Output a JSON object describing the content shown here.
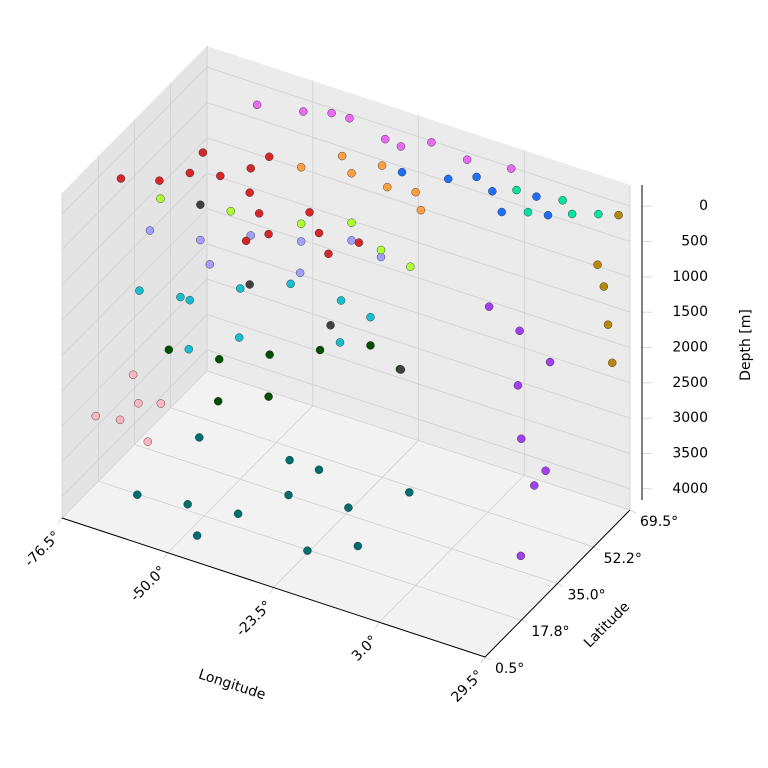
{
  "chart_data": {
    "type": "scatter3d",
    "xlabel": "Longitude",
    "ylabel": "Latitude",
    "zlabel": "Depth [m]",
    "xlim": [
      -76.5,
      29.5
    ],
    "ylim": [
      0.5,
      69.5
    ],
    "zlim": [
      4300,
      -300
    ],
    "xticks": [
      {
        "value": -76.5,
        "label": "-76.5°"
      },
      {
        "value": -50.0,
        "label": "-50.0°"
      },
      {
        "value": -23.5,
        "label": "-23.5°"
      },
      {
        "value": 3.0,
        "label": "3.0°"
      },
      {
        "value": 29.5,
        "label": "29.5°"
      }
    ],
    "yticks": [
      {
        "value": 0.5,
        "label": "0.5°"
      },
      {
        "value": 17.8,
        "label": "17.8°"
      },
      {
        "value": 35.0,
        "label": "35.0°"
      },
      {
        "value": 52.2,
        "label": "52.2°"
      },
      {
        "value": 69.5,
        "label": "69.5°"
      }
    ],
    "zticks": [
      0,
      500,
      1000,
      1500,
      2000,
      2500,
      3000,
      3500,
      4000
    ],
    "grid": true,
    "series": [
      {
        "color": "#006d6f",
        "x": [
          -60,
          -50,
          -40,
          -30,
          -20,
          -10,
          -55,
          -35,
          -25,
          -45,
          -15,
          -5
        ],
        "y": [
          5,
          10,
          15,
          20,
          10,
          15,
          25,
          30,
          25,
          5,
          20,
          30
        ],
        "z": [
          3800,
          3900,
          4000,
          3700,
          4000,
          3900,
          3500,
          3600,
          3400,
          4100,
          3600,
          3500
        ]
      },
      {
        "color": "#ffb6c1",
        "x": [
          -72,
          -68,
          -65,
          -62,
          -70,
          -60
        ],
        "y": [
          8,
          12,
          15,
          20,
          22,
          10
        ],
        "z": [
          3000,
          3100,
          2900,
          3000,
          2800,
          3200
        ]
      },
      {
        "color": "#005000",
        "x": [
          -60,
          -50,
          -40,
          -30,
          -20,
          -45,
          -35,
          -10
        ],
        "y": [
          20,
          25,
          30,
          35,
          40,
          15,
          20,
          35
        ],
        "z": [
          2200,
          2300,
          2200,
          2100,
          2000,
          2500,
          2400,
          2000
        ]
      },
      {
        "color": "#17becf",
        "x": [
          -70,
          -60,
          -50,
          -40,
          -30,
          -20,
          -65,
          -45,
          -25,
          -55
        ],
        "y": [
          25,
          30,
          35,
          40,
          45,
          40,
          35,
          25,
          35,
          20
        ],
        "z": [
          1700,
          1800,
          1600,
          1500,
          1700,
          1600,
          2000,
          1900,
          1900,
          2100
        ]
      },
      {
        "color": "#a0a0ff",
        "x": [
          -70,
          -60,
          -50,
          -40,
          -30,
          -20,
          -55,
          -35
        ],
        "y": [
          30,
          35,
          40,
          45,
          50,
          45,
          30,
          35
        ],
        "z": [
          1000,
          1100,
          1000,
          1050,
          1000,
          900,
          1200,
          1100
        ]
      },
      {
        "color": "#adff2f",
        "x": [
          -70,
          -55,
          -40,
          -30,
          -20,
          -10
        ],
        "y": [
          35,
          40,
          45,
          50,
          45,
          40
        ],
        "z": [
          700,
          750,
          800,
          750,
          800,
          700
        ]
      },
      {
        "color": "#d62728",
        "x": [
          -72,
          -65,
          -60,
          -55,
          -50,
          -45,
          -40,
          -35,
          -30,
          -25,
          -20,
          -15,
          -62,
          -48,
          -38
        ],
        "y": [
          20,
          25,
          30,
          35,
          40,
          30,
          25,
          20,
          30,
          25,
          20,
          25,
          40,
          45,
          15
        ],
        "z": [
          0,
          50,
          0,
          100,
          50,
          0,
          50,
          100,
          0,
          50,
          100,
          0,
          50,
          0,
          100
        ]
      },
      {
        "color": "#ff9f40",
        "x": [
          -40,
          -30,
          -20,
          -10,
          -25,
          -15,
          -35
        ],
        "y": [
          45,
          50,
          48,
          45,
          55,
          52,
          55
        ],
        "z": [
          0,
          50,
          0,
          50,
          0,
          100,
          50
        ]
      },
      {
        "color": "#1f6fff",
        "x": [
          -20,
          -10,
          0,
          10,
          5,
          -5,
          15
        ],
        "y": [
          55,
          58,
          60,
          62,
          55,
          62,
          58
        ],
        "z": [
          0,
          0,
          50,
          0,
          100,
          0,
          50
        ]
      },
      {
        "color": "#00e5a0",
        "x": [
          5,
          15,
          20,
          25,
          10
        ],
        "y": [
          62,
          65,
          60,
          63,
          58
        ],
        "z": [
          0,
          50,
          0,
          0,
          100
        ]
      },
      {
        "color": "#e76bf3",
        "x": [
          -60,
          -50,
          -40,
          -30,
          -20,
          -10,
          0,
          -45,
          -25
        ],
        "y": [
          62,
          65,
          68,
          66,
          69,
          67,
          69,
          69,
          64
        ],
        "z": [
          0,
          0,
          0,
          50,
          0,
          0,
          0,
          50,
          0
        ]
      },
      {
        "color": "#a040f0",
        "x": [
          15,
          20,
          25,
          18,
          22,
          26,
          20,
          24
        ],
        "y": [
          30,
          35,
          40,
          38,
          32,
          36,
          42,
          28
        ],
        "z": [
          500,
          900,
          1400,
          1800,
          2300,
          2800,
          3300,
          3800
        ]
      },
      {
        "color": "#b8860b",
        "x": [
          29,
          29,
          29,
          29,
          29
        ],
        "y": [
          55,
          58,
          60,
          62,
          65
        ],
        "z": [
          400,
          800,
          1400,
          2000,
          0
        ]
      },
      {
        "color": "#404040",
        "x": [
          -60,
          -45,
          -30,
          -15
        ],
        "y": [
          35,
          30,
          40,
          45
        ],
        "z": [
          600,
          1300,
          1900,
          2400
        ]
      }
    ]
  }
}
